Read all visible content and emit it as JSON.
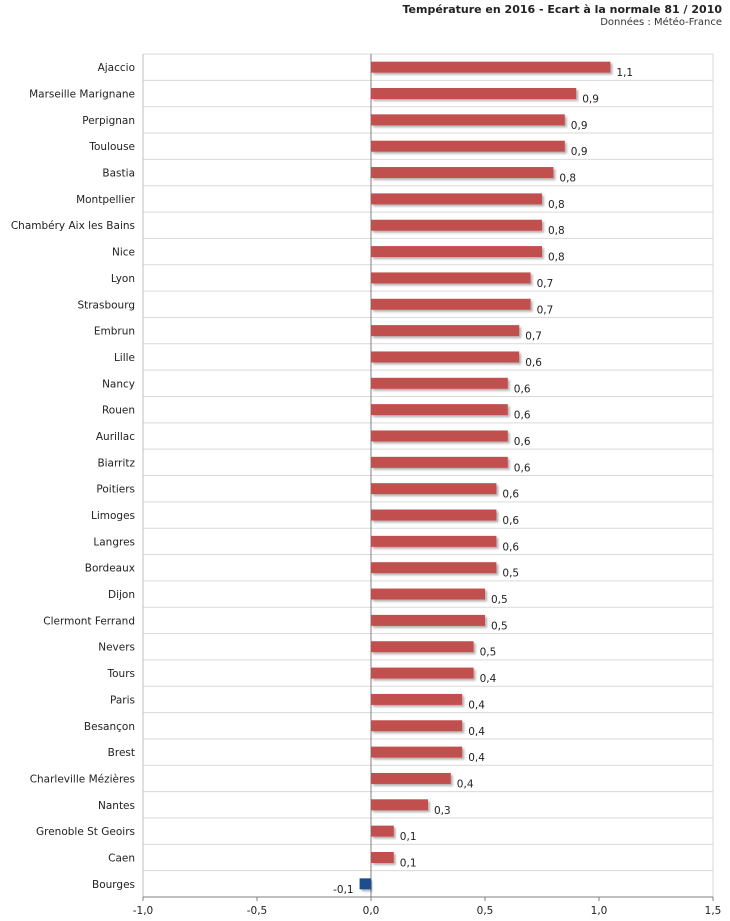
{
  "chart_data": {
    "type": "bar",
    "orientation": "horizontal",
    "title": "Température en 2016 - Ecart à la normale 81 / 2010",
    "subtitle": "Données : Météo-France",
    "xlabel": "",
    "ylabel": "",
    "xlim": [
      -1.0,
      1.5
    ],
    "x_ticks": [
      "-1,0",
      "-0,5",
      "0,0",
      "0,5",
      "1,0",
      "1,5"
    ],
    "x_tick_values": [
      -1.0,
      -0.5,
      0.0,
      0.5,
      1.0,
      1.5
    ],
    "grid": true,
    "positive_color": "#c0504d",
    "negative_color": "#1f4e8c",
    "categories": [
      "Ajaccio",
      "Marseille Marignane",
      "Perpignan",
      "Toulouse",
      "Bastia",
      "Montpellier",
      "Chambéry Aix les Bains",
      "Nice",
      "Lyon",
      "Strasbourg",
      "Embrun",
      "Lille",
      "Nancy",
      "Rouen",
      "Aurillac",
      "Biarritz",
      "Poitiers",
      "Limoges",
      "Langres",
      "Bordeaux",
      "Dijon",
      "Clermont Ferrand",
      "Nevers",
      "Tours",
      "Paris",
      "Besançon",
      "Brest",
      "Charleville Mézières",
      "Nantes",
      "Grenoble St Geoirs",
      "Caen",
      "Bourges"
    ],
    "values": [
      1.05,
      0.9,
      0.85,
      0.85,
      0.8,
      0.75,
      0.75,
      0.75,
      0.7,
      0.7,
      0.65,
      0.65,
      0.6,
      0.6,
      0.6,
      0.6,
      0.55,
      0.55,
      0.55,
      0.55,
      0.5,
      0.5,
      0.45,
      0.45,
      0.4,
      0.4,
      0.4,
      0.35,
      0.25,
      0.1,
      0.1,
      -0.05
    ],
    "value_labels": [
      "1,1",
      "0,9",
      "0,9",
      "0,9",
      "0,8",
      "0,8",
      "0,8",
      "0,8",
      "0,7",
      "0,7",
      "0,7",
      "0,6",
      "0,6",
      "0,6",
      "0,6",
      "0,6",
      "0,6",
      "0,6",
      "0,6",
      "0,5",
      "0,5",
      "0,5",
      "0,5",
      "0,4",
      "0,4",
      "0,4",
      "0,4",
      "0,4",
      "0,3",
      "0,1",
      "0,1",
      "-0,1"
    ]
  }
}
